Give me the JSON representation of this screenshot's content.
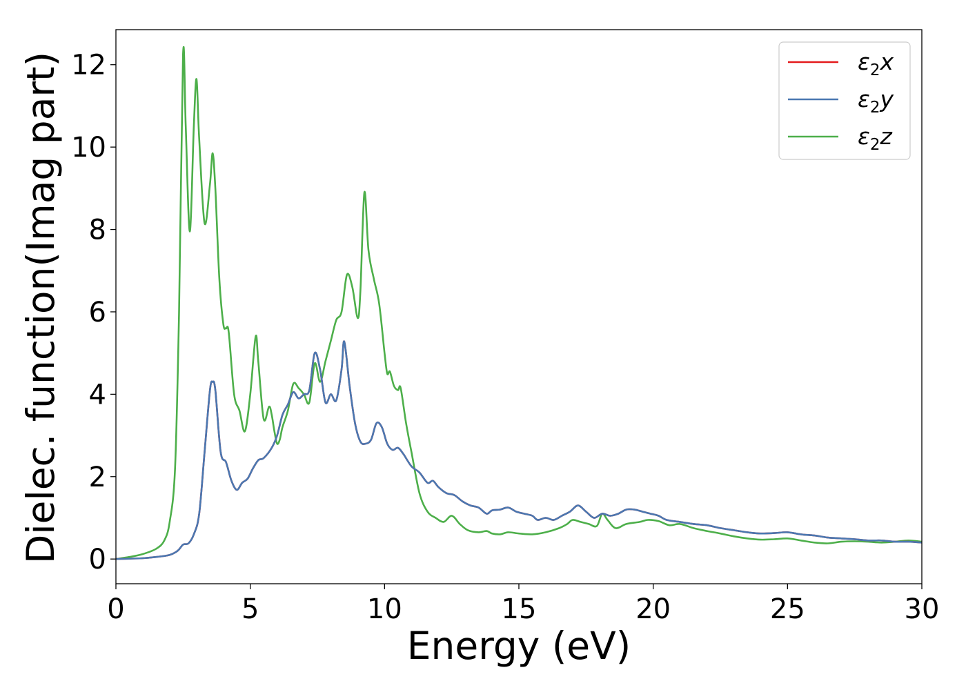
{
  "chart_data": {
    "type": "line",
    "xlabel": "Energy (eV)",
    "ylabel": "Dielec. function(Imag part)",
    "xlim": [
      0,
      30
    ],
    "ylim": [
      -0.6,
      12.85
    ],
    "xticks": [
      0,
      5,
      10,
      15,
      20,
      25,
      30
    ],
    "yticks": [
      0,
      2,
      4,
      6,
      8,
      10,
      12
    ],
    "grid": false,
    "legend_position": "top-right",
    "series": [
      {
        "name": "ε₂x",
        "legend": {
          "base": "ε",
          "sub": "2",
          "tail": "x"
        },
        "color": "#e41a1c",
        "x": [
          0,
          1,
          1.5,
          2,
          2.3,
          2.5,
          2.7,
          2.9,
          3.1,
          3.3,
          3.5,
          3.6,
          3.7,
          3.9,
          4.1,
          4.3,
          4.5,
          4.7,
          4.9,
          5.1,
          5.3,
          5.5,
          5.8,
          6.0,
          6.2,
          6.4,
          6.6,
          6.8,
          7.0,
          7.2,
          7.4,
          7.6,
          7.8,
          8.0,
          8.2,
          8.4,
          8.5,
          8.7,
          8.9,
          9.1,
          9.3,
          9.5,
          9.7,
          9.9,
          10.1,
          10.3,
          10.5,
          10.7,
          11.0,
          11.3,
          11.6,
          11.8,
          12.0,
          12.3,
          12.6,
          12.9,
          13.2,
          13.5,
          13.8,
          14.0,
          14.3,
          14.6,
          14.9,
          15.2,
          15.5,
          15.7,
          16.0,
          16.3,
          16.6,
          16.9,
          17.2,
          17.5,
          17.8,
          18.1,
          18.4,
          18.7,
          19.0,
          19.3,
          19.6,
          19.9,
          20.2,
          20.5,
          21.0,
          21.5,
          22.0,
          22.5,
          23.0,
          23.5,
          24.0,
          24.5,
          25.0,
          25.5,
          26.0,
          26.5,
          27.0,
          27.5,
          28.0,
          28.5,
          29.0,
          29.5,
          30
        ],
        "y": [
          0,
          0.02,
          0.05,
          0.1,
          0.2,
          0.35,
          0.38,
          0.6,
          1.1,
          2.6,
          4.1,
          4.3,
          4.1,
          2.6,
          2.35,
          1.9,
          1.68,
          1.85,
          1.95,
          2.2,
          2.4,
          2.45,
          2.7,
          3.0,
          3.5,
          3.75,
          4.05,
          3.9,
          4.0,
          4.1,
          5.0,
          4.6,
          3.8,
          4.0,
          3.85,
          4.6,
          5.28,
          4.2,
          3.3,
          2.85,
          2.8,
          2.9,
          3.3,
          3.2,
          2.8,
          2.65,
          2.7,
          2.55,
          2.25,
          2.1,
          1.85,
          1.9,
          1.75,
          1.6,
          1.55,
          1.4,
          1.3,
          1.25,
          1.1,
          1.18,
          1.2,
          1.25,
          1.15,
          1.1,
          1.05,
          0.95,
          1.0,
          0.95,
          1.05,
          1.15,
          1.3,
          1.15,
          1.0,
          1.1,
          1.05,
          1.1,
          1.2,
          1.2,
          1.15,
          1.1,
          1.05,
          0.95,
          0.9,
          0.85,
          0.82,
          0.75,
          0.7,
          0.65,
          0.62,
          0.63,
          0.65,
          0.6,
          0.57,
          0.52,
          0.5,
          0.48,
          0.45,
          0.45,
          0.42,
          0.42,
          0.4
        ]
      },
      {
        "name": "ε₂y",
        "legend": {
          "base": "ε",
          "sub": "2",
          "tail": "y"
        },
        "color": "#4a78b1",
        "x": [
          0,
          1,
          1.5,
          2,
          2.3,
          2.5,
          2.7,
          2.9,
          3.1,
          3.3,
          3.5,
          3.6,
          3.7,
          3.9,
          4.1,
          4.3,
          4.5,
          4.7,
          4.9,
          5.1,
          5.3,
          5.5,
          5.8,
          6.0,
          6.2,
          6.4,
          6.6,
          6.8,
          7.0,
          7.2,
          7.4,
          7.6,
          7.8,
          8.0,
          8.2,
          8.4,
          8.5,
          8.7,
          8.9,
          9.1,
          9.3,
          9.5,
          9.7,
          9.9,
          10.1,
          10.3,
          10.5,
          10.7,
          11.0,
          11.3,
          11.6,
          11.8,
          12.0,
          12.3,
          12.6,
          12.9,
          13.2,
          13.5,
          13.8,
          14.0,
          14.3,
          14.6,
          14.9,
          15.2,
          15.5,
          15.7,
          16.0,
          16.3,
          16.6,
          16.9,
          17.2,
          17.5,
          17.8,
          18.1,
          18.4,
          18.7,
          19.0,
          19.3,
          19.6,
          19.9,
          20.2,
          20.5,
          21.0,
          21.5,
          22.0,
          22.5,
          23.0,
          23.5,
          24.0,
          24.5,
          25.0,
          25.5,
          26.0,
          26.5,
          27.0,
          27.5,
          28.0,
          28.5,
          29.0,
          29.5,
          30
        ],
        "y": [
          0,
          0.02,
          0.05,
          0.1,
          0.2,
          0.35,
          0.38,
          0.6,
          1.1,
          2.6,
          4.1,
          4.3,
          4.1,
          2.6,
          2.35,
          1.9,
          1.68,
          1.85,
          1.95,
          2.2,
          2.4,
          2.45,
          2.7,
          3.0,
          3.5,
          3.75,
          4.05,
          3.9,
          4.0,
          4.1,
          5.0,
          4.6,
          3.8,
          4.0,
          3.85,
          4.6,
          5.28,
          4.2,
          3.3,
          2.85,
          2.8,
          2.9,
          3.3,
          3.2,
          2.8,
          2.65,
          2.7,
          2.55,
          2.25,
          2.1,
          1.85,
          1.9,
          1.75,
          1.6,
          1.55,
          1.4,
          1.3,
          1.25,
          1.1,
          1.18,
          1.2,
          1.25,
          1.15,
          1.1,
          1.05,
          0.95,
          1.0,
          0.95,
          1.05,
          1.15,
          1.3,
          1.15,
          1.0,
          1.1,
          1.05,
          1.1,
          1.2,
          1.2,
          1.15,
          1.1,
          1.05,
          0.95,
          0.9,
          0.85,
          0.82,
          0.75,
          0.7,
          0.65,
          0.62,
          0.63,
          0.65,
          0.6,
          0.57,
          0.52,
          0.5,
          0.48,
          0.45,
          0.45,
          0.42,
          0.42,
          0.4
        ]
      },
      {
        "name": "ε₂z",
        "legend": {
          "base": "ε",
          "sub": "2",
          "tail": "z"
        },
        "color": "#4daf4a",
        "x": [
          0,
          0.5,
          1.0,
          1.5,
          1.8,
          2.0,
          2.2,
          2.35,
          2.5,
          2.6,
          2.75,
          2.9,
          3.0,
          3.1,
          3.3,
          3.5,
          3.6,
          3.7,
          3.85,
          4.0,
          4.1,
          4.2,
          4.4,
          4.6,
          4.8,
          5.0,
          5.2,
          5.3,
          5.5,
          5.7,
          5.8,
          5.9,
          6.0,
          6.1,
          6.2,
          6.4,
          6.6,
          6.8,
          7.0,
          7.2,
          7.4,
          7.6,
          7.8,
          8.0,
          8.2,
          8.4,
          8.6,
          8.8,
          9.0,
          9.1,
          9.25,
          9.4,
          9.6,
          9.8,
          10.0,
          10.1,
          10.2,
          10.35,
          10.5,
          10.6,
          10.8,
          11.0,
          11.3,
          11.6,
          11.9,
          12.2,
          12.5,
          12.8,
          13.1,
          13.5,
          13.8,
          14.0,
          14.3,
          14.6,
          15.0,
          15.5,
          16.0,
          16.5,
          16.8,
          17.0,
          17.3,
          17.6,
          17.9,
          18.1,
          18.3,
          18.6,
          19.0,
          19.5,
          19.8,
          20.2,
          20.6,
          21.0,
          21.5,
          22.0,
          22.5,
          23.0,
          23.5,
          24.0,
          24.5,
          25.0,
          25.5,
          26.0,
          26.5,
          27.0,
          27.5,
          28.0,
          28.5,
          29.0,
          29.5,
          30
        ],
        "y": [
          0,
          0.05,
          0.12,
          0.25,
          0.45,
          0.9,
          2.2,
          6.0,
          12.25,
          10.5,
          7.95,
          10.5,
          11.65,
          10.2,
          8.15,
          9.1,
          9.85,
          9.0,
          6.8,
          5.7,
          5.6,
          5.5,
          4.0,
          3.6,
          3.1,
          4.0,
          5.4,
          4.8,
          3.4,
          3.7,
          3.5,
          3.1,
          2.8,
          2.9,
          3.2,
          3.6,
          4.25,
          4.15,
          4.0,
          3.8,
          4.75,
          4.3,
          4.8,
          5.3,
          5.8,
          6.0,
          6.9,
          6.6,
          5.85,
          6.5,
          8.9,
          7.5,
          6.8,
          6.2,
          5.0,
          4.5,
          4.55,
          4.2,
          4.1,
          4.15,
          3.3,
          2.6,
          1.6,
          1.15,
          1.0,
          0.9,
          1.05,
          0.85,
          0.7,
          0.65,
          0.68,
          0.62,
          0.6,
          0.65,
          0.62,
          0.6,
          0.65,
          0.75,
          0.85,
          0.95,
          0.9,
          0.85,
          0.8,
          1.1,
          0.95,
          0.75,
          0.85,
          0.9,
          0.95,
          0.92,
          0.82,
          0.85,
          0.75,
          0.68,
          0.62,
          0.55,
          0.5,
          0.47,
          0.48,
          0.5,
          0.45,
          0.4,
          0.38,
          0.42,
          0.43,
          0.42,
          0.4,
          0.42,
          0.45,
          0.42
        ]
      }
    ]
  }
}
